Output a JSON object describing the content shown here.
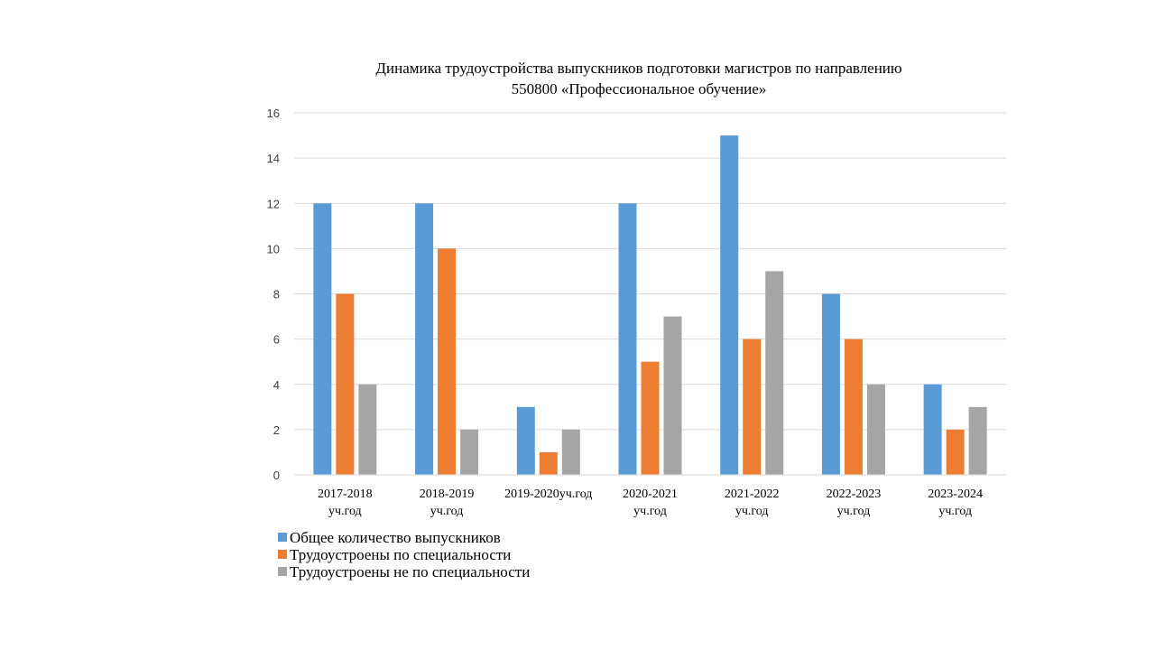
{
  "chart_data": {
    "type": "bar",
    "title_lines": [
      "Динамика трудоустройства выпускников подготовки магистров по направлению",
      "550800 «Профессиональное обучение»"
    ],
    "categories": [
      [
        "2017-2018",
        "уч.год"
      ],
      [
        "2018-2019",
        "уч.год"
      ],
      [
        "2019-2020уч.год"
      ],
      [
        "2020-2021",
        "уч.год"
      ],
      [
        "2021-2022",
        "уч.год"
      ],
      [
        "2022-2023",
        "уч.год"
      ],
      [
        "2023-2024",
        "уч.год"
      ]
    ],
    "series": [
      {
        "name": "Общее количество выпускников",
        "color": "#5b9bd5",
        "values": [
          12,
          12,
          3,
          12,
          15,
          8,
          4
        ]
      },
      {
        "name": "Трудоустроены по специальности",
        "color": "#ed7d31",
        "values": [
          8,
          10,
          1,
          5,
          6,
          6,
          2
        ]
      },
      {
        "name": "Трудоустроены не по специальности",
        "color": "#a5a5a5",
        "values": [
          4,
          2,
          2,
          7,
          9,
          4,
          3
        ]
      }
    ],
    "ylim": [
      0,
      16
    ],
    "yticks": [
      0,
      2,
      4,
      6,
      8,
      10,
      12,
      14,
      16
    ],
    "grid": true,
    "legend_position": "bottom-left"
  }
}
